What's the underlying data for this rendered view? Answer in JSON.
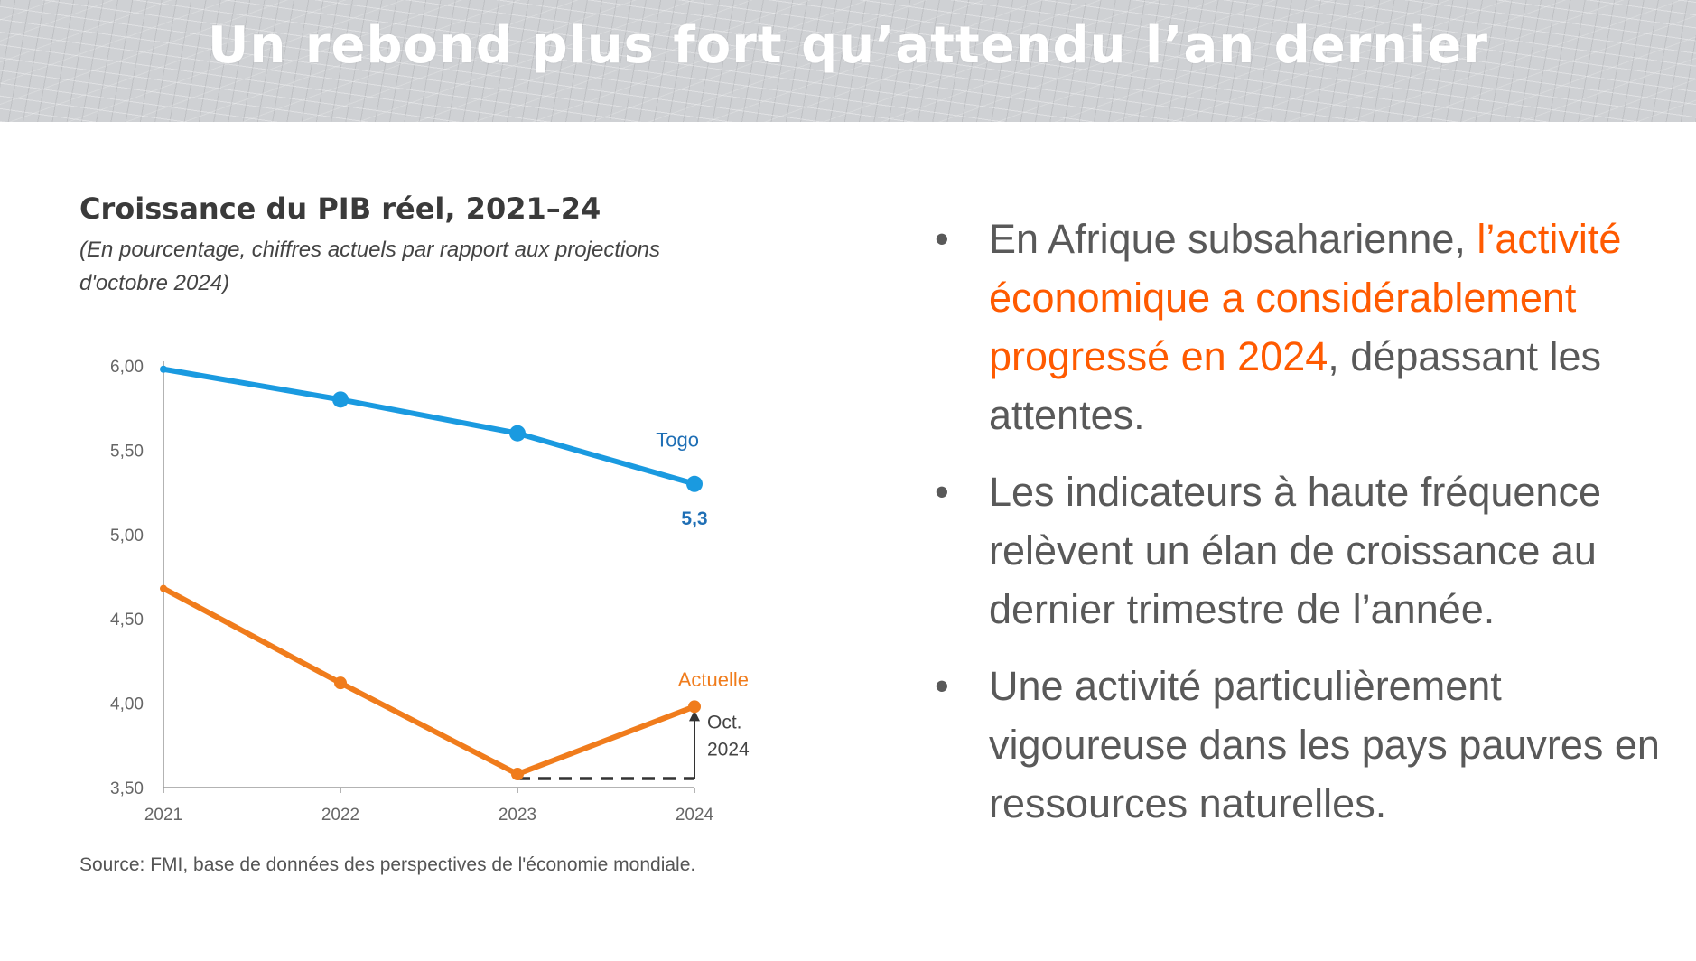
{
  "header": {
    "title": "Un rebond plus fort qu’attendu l’an dernier"
  },
  "chart": {
    "title": "Croissance du PIB réel, 2021–24",
    "subtitle": "(En pourcentage, chiffres actuels par rapport aux projections d'octobre 2024)",
    "source": "Source: FMI, base de données des perspectives de l'économie mondiale."
  },
  "chart_data": {
    "type": "line",
    "title": "Croissance du PIB réel, 2021–24",
    "subtitle": "(En pourcentage, chiffres actuels par rapport aux projections d'octobre 2024)",
    "x": [
      "2021",
      "2022",
      "2023",
      "2024"
    ],
    "ylim": [
      3.5,
      6.0
    ],
    "yticks": [
      "3,50",
      "4,00",
      "4,50",
      "5,00",
      "5,50",
      "6,00"
    ],
    "grid": false,
    "series": [
      {
        "name": "Togo",
        "values": [
          5.98,
          5.8,
          5.6,
          5.3
        ],
        "color": "#1a9ae0",
        "label_color": "#1f6fb5",
        "end_label": "5,3"
      },
      {
        "name": "Actuelle",
        "values": [
          4.68,
          4.12,
          3.58,
          3.98
        ],
        "color": "#f07c1c",
        "label_color": "#f07c1c"
      }
    ],
    "annotation": {
      "text_line1": "Oct.",
      "text_line2": "2024",
      "baseline_value": 3.58,
      "from_x": "2023",
      "to_x": "2024",
      "target_value": 3.98
    },
    "source": "Source: FMI, base de données des perspectives de l'économie mondiale."
  },
  "bullets": [
    {
      "pre": "En Afrique subsaharienne, ",
      "highlight": "l’activité économique a considérablement progressé en 2024",
      "post": ", dépassant les attentes."
    },
    {
      "pre": "Les indicateurs à haute fréquence relèvent un élan de croissance au dernier trimestre de l’année.",
      "highlight": "",
      "post": ""
    },
    {
      "pre": "Une activité particulièrement vigoureuse dans les pays pauvres en ressources naturelles.",
      "highlight": "",
      "post": ""
    }
  ],
  "colors": {
    "accent": "#ff5a00",
    "togo": "#1a9ae0",
    "actuelle": "#f07c1c",
    "body_text": "#595959"
  }
}
